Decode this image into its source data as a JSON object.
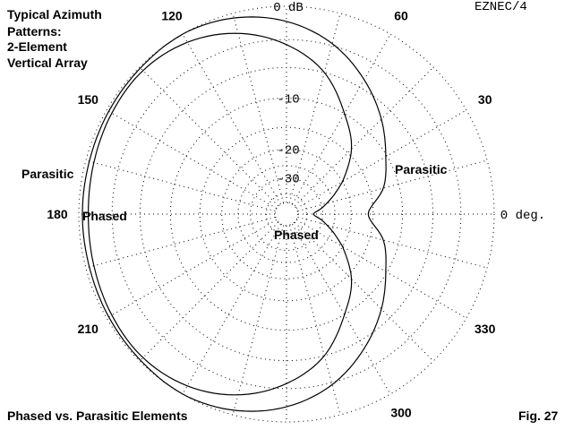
{
  "title_lines": [
    "Typical Azimuth",
    "Patterns:",
    "2-Element",
    "Vertical Array"
  ],
  "caption": "Phased vs. Parasitic Elements",
  "figure_label": "Fig. 27",
  "software_label": "EZNEC/4",
  "chart_data": {
    "type": "polar",
    "angle_unit": "deg",
    "angle_ticks": [
      {
        "value": 0,
        "label": "0 deg."
      },
      {
        "value": 30,
        "label": "30"
      },
      {
        "value": 60,
        "label": "60"
      },
      {
        "value": 120,
        "label": "120"
      },
      {
        "value": 150,
        "label": "150"
      },
      {
        "value": 180,
        "label": "180"
      },
      {
        "value": 210,
        "label": "210"
      },
      {
        "value": 300,
        "label": "300"
      },
      {
        "value": 330,
        "label": "330"
      }
    ],
    "radial_unit": "dB",
    "radial_ticks": [
      {
        "value": 0,
        "label": "0 dB"
      },
      {
        "value": -10,
        "label": "-10"
      },
      {
        "value": -20,
        "label": "-20"
      },
      {
        "value": -30,
        "label": "-30"
      }
    ],
    "series": [
      {
        "name": "Parasitic",
        "angles": [
          0,
          15,
          30,
          45,
          60,
          75,
          90,
          105,
          120,
          135,
          150,
          165,
          180,
          195,
          210,
          225,
          240,
          255,
          270,
          285,
          300,
          315,
          330,
          345
        ],
        "gain_db": [
          -16,
          -12.5,
          -10.2,
          -7.5,
          -5,
          -2.8,
          -1.3,
          -0.4,
          0,
          -0.1,
          -0.2,
          -0.3,
          -0.3,
          -0.3,
          -0.2,
          -0.1,
          0,
          -0.4,
          -1.3,
          -2.8,
          -5,
          -7.5,
          -10.2,
          -12.5
        ]
      },
      {
        "name": "Phased",
        "angles": [
          0,
          10,
          20,
          30,
          45,
          60,
          75,
          90,
          105,
          120,
          135,
          150,
          165,
          180,
          195,
          210,
          225,
          240,
          255,
          270,
          285,
          300,
          315,
          330,
          340,
          350
        ],
        "gain_db": [
          -35,
          -30,
          -25,
          -20,
          -14,
          -10,
          -6,
          -3.5,
          -1.8,
          -0.8,
          -0.4,
          -0.5,
          -0.7,
          -0.8,
          -0.7,
          -0.5,
          -0.4,
          -0.8,
          -1.8,
          -3.5,
          -6,
          -10,
          -14,
          -20,
          -25,
          -30
        ]
      }
    ],
    "annotations": [
      {
        "text": "Parasitic",
        "series": "Parasitic",
        "placement": "right of center, near 15 deg"
      },
      {
        "text": "Phased",
        "series": "Phased",
        "placement": "below center"
      },
      {
        "text": "Parasitic",
        "series": "Parasitic",
        "placement": "left, near 165 deg"
      },
      {
        "text": "Phased",
        "series": "Phased",
        "placement": "left, near 180 deg inside curve"
      }
    ]
  }
}
